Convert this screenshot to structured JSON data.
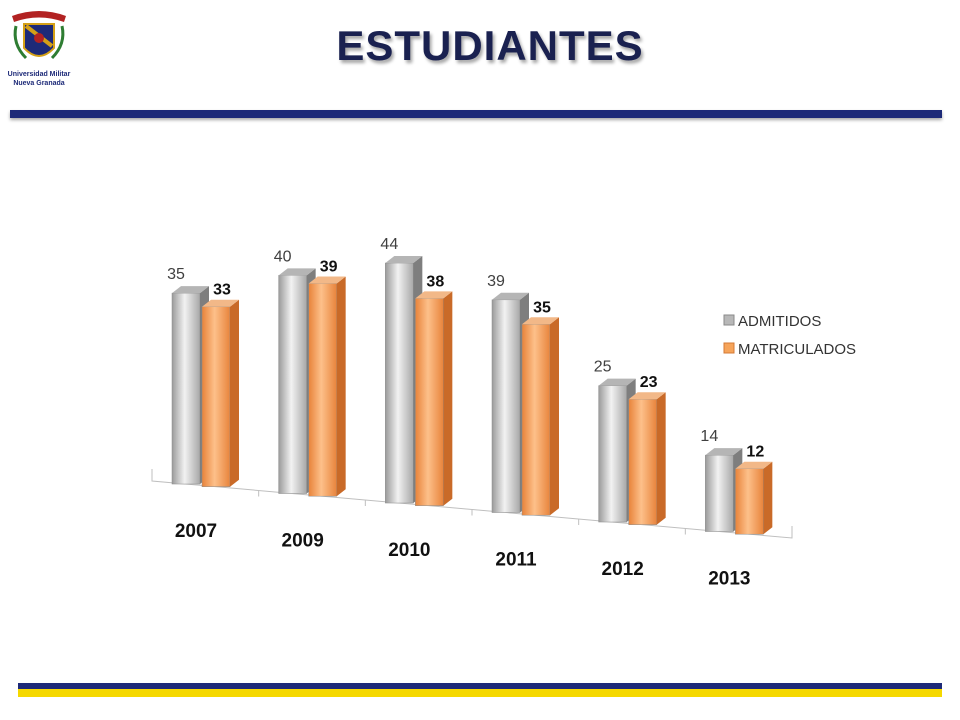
{
  "slide": {
    "title": "ESTUDIANTES",
    "logo_text_line1": "Universidad Militar",
    "logo_text_line2": "Nueva Granada"
  },
  "colors": {
    "navy": "#1d2a78",
    "yellow": "#f5d800",
    "admitidos": "#c8c8c8",
    "matriculados": "#f6a45a"
  },
  "chart_data": {
    "type": "bar",
    "categories": [
      "2007",
      "2009",
      "2010",
      "2011",
      "2012",
      "2013"
    ],
    "series": [
      {
        "name": "ADMITIDOS",
        "values": [
          35,
          40,
          44,
          39,
          25,
          14
        ]
      },
      {
        "name": "MATRICULADOS",
        "values": [
          33,
          39,
          38,
          35,
          23,
          12
        ]
      }
    ],
    "title": "",
    "xlabel": "",
    "ylabel": "",
    "ylim": [
      0,
      44
    ],
    "legend_position": "right",
    "grid": false,
    "style": "3d-clustered-columns"
  }
}
